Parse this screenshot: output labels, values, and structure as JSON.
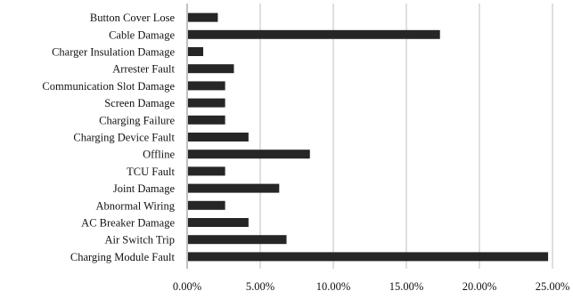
{
  "chart_data": {
    "type": "bar",
    "orientation": "horizontal",
    "categories": [
      "Button Cover Lose",
      "Cable Damage",
      "Charger Insulation Damage",
      "Arrester Fault",
      "Communication Slot Damage",
      "Screen Damage",
      "Charging Failure",
      "Charging Device Fault",
      "Offline",
      "TCU Fault",
      "Joint Damage",
      "Abnormal Wiring",
      "AC Breaker Damage",
      "Air Switch Trip",
      "Charging Module Fault"
    ],
    "values": [
      2.1,
      17.3,
      1.1,
      3.2,
      2.6,
      2.6,
      2.6,
      4.2,
      8.4,
      2.6,
      6.3,
      2.6,
      4.2,
      6.8,
      24.7
    ],
    "value_format": "percent",
    "xlim": [
      0,
      25
    ],
    "xticks": [
      "0.00%",
      "5.00%",
      "10.00%",
      "15.00%",
      "20.00%",
      "25.00%"
    ],
    "title": "",
    "xlabel": "",
    "ylabel": "",
    "grid": "vertical",
    "legend": "none",
    "bar_color": "#262626"
  }
}
